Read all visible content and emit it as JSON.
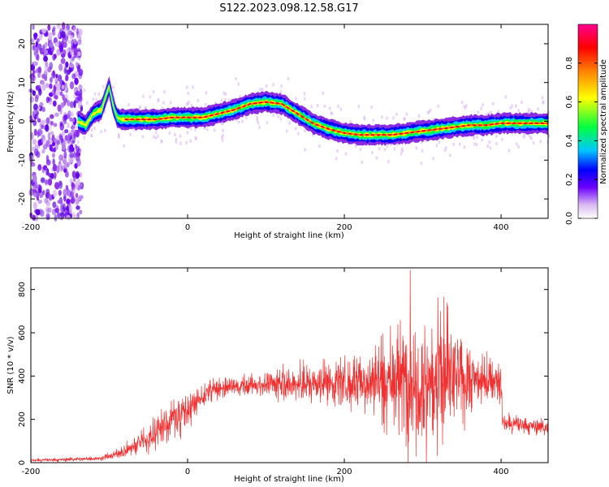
{
  "figure_title": "S122.2023.098.12.58.G17",
  "chart_data": [
    {
      "type": "heatmap",
      "name": "spectrogram",
      "xlabel": "Height of straight line (km)",
      "ylabel": "Frequency (Hz)",
      "xlim": [
        -200,
        460
      ],
      "ylim": [
        -25,
        25
      ],
      "xticks": [
        -200,
        0,
        200,
        400
      ],
      "yticks": [
        -20,
        -10,
        0,
        10,
        20
      ],
      "grid": false,
      "colormap": [
        "#ffffff",
        "#d9b8f0",
        "#6b00ff",
        "#0000ff",
        "#00c8ff",
        "#00ff40",
        "#ffff00",
        "#ff8000",
        "#ff0000",
        "#ff0090"
      ],
      "colorbar": {
        "label": "Normalized spectral amplitude",
        "range": [
          0,
          1
        ],
        "ticks": [
          0.0,
          0.2,
          0.4,
          0.6,
          0.8
        ]
      },
      "ridge": {
        "x": [
          -140,
          -130,
          -120,
          -110,
          -100,
          -95,
          -90,
          -85,
          -80,
          -60,
          -40,
          -20,
          0,
          20,
          40,
          60,
          80,
          100,
          120,
          140,
          160,
          180,
          200,
          220,
          240,
          260,
          280,
          300,
          320,
          340,
          360,
          380,
          400,
          420,
          440,
          460
        ],
        "freq": [
          0,
          -1,
          2,
          3,
          9,
          4,
          1,
          0.5,
          0.5,
          0.5,
          0.5,
          1,
          1,
          1,
          2,
          3,
          4.5,
          5,
          4.5,
          2,
          -0.5,
          -2,
          -3,
          -3.5,
          -3.5,
          -3.5,
          -3,
          -2.5,
          -2,
          -1.5,
          -1,
          -1,
          -0.5,
          -0.5,
          -0.5,
          -0.5
        ]
      },
      "noise_region_x": [
        -200,
        -140
      ]
    },
    {
      "type": "line",
      "name": "snr",
      "xlabel": "Height of straight line (km)",
      "ylabel": "SNR (10 * v/v)",
      "xlim": [
        -200,
        460
      ],
      "ylim": [
        0,
        900
      ],
      "xticks": [
        -200,
        0,
        200,
        400
      ],
      "yticks": [
        0,
        200,
        400,
        600,
        800
      ],
      "grid": false,
      "color": "#f03030",
      "envelope": {
        "x": [
          -200,
          -150,
          -110,
          -90,
          -70,
          -50,
          -30,
          -10,
          10,
          30,
          50,
          70,
          100,
          130,
          160,
          190,
          220,
          250,
          280,
          300,
          320,
          340,
          360,
          380,
          400,
          402,
          420,
          440,
          460
        ],
        "mean": [
          10,
          15,
          20,
          40,
          70,
          120,
          170,
          230,
          280,
          330,
          350,
          355,
          360,
          360,
          365,
          370,
          380,
          385,
          390,
          395,
          390,
          390,
          385,
          380,
          375,
          180,
          175,
          170,
          160
        ],
        "spread": [
          5,
          6,
          8,
          15,
          30,
          50,
          70,
          70,
          50,
          35,
          30,
          30,
          40,
          60,
          70,
          80,
          100,
          140,
          240,
          250,
          240,
          180,
          120,
          80,
          60,
          30,
          30,
          25,
          25
        ]
      },
      "peak": {
        "x": 284,
        "y": 890
      }
    }
  ]
}
